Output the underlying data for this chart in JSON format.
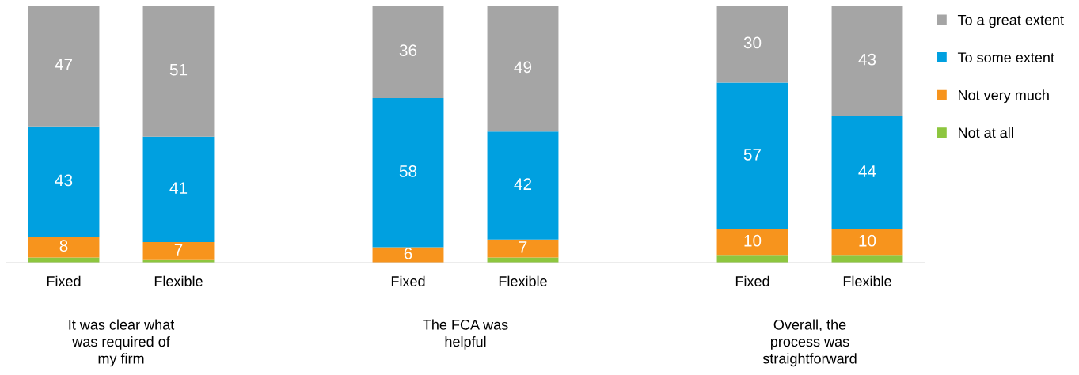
{
  "chart_data": {
    "type": "bar",
    "stacked": true,
    "categories": [
      "Fixed",
      "Flexible",
      null,
      "Fixed",
      "Flexible",
      null,
      "Fixed",
      "Flexible"
    ],
    "series": [
      {
        "name": "Not at all",
        "color": "#8dc63f",
        "values": [
          2,
          1,
          null,
          0,
          2,
          null,
          3,
          3
        ],
        "value_labels": [
          null,
          null,
          null,
          null,
          null,
          null,
          null,
          null
        ]
      },
      {
        "name": "Not very much",
        "color": "#f7941d",
        "values": [
          8,
          7,
          null,
          6,
          7,
          null,
          10,
          10
        ],
        "value_labels": [
          "8",
          "7",
          null,
          "6",
          "7",
          null,
          "10",
          "10"
        ]
      },
      {
        "name": "To some extent",
        "color": "#00a0e0",
        "values": [
          43,
          41,
          null,
          58,
          42,
          null,
          57,
          44
        ],
        "value_labels": [
          "43",
          "41",
          null,
          "58",
          "42",
          null,
          "57",
          "44"
        ]
      },
      {
        "name": "To a great extent",
        "color": "#a5a5a5",
        "values": [
          47,
          51,
          null,
          36,
          49,
          null,
          30,
          43
        ],
        "value_labels": [
          "47",
          "51",
          null,
          "36",
          "49",
          null,
          "30",
          "43"
        ]
      }
    ],
    "annotations": [
      "It was clear what\nwas required of\nmy firm",
      "The FCA was\nhelpful",
      "Overall, the\nprocess was\nstraightforward"
    ],
    "legend": "right"
  }
}
